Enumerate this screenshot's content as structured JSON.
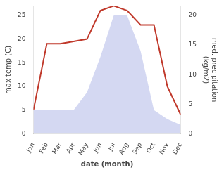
{
  "chart_data": {
    "type": "line",
    "xlabel": "date (month)",
    "ylabel": "max temp (C)",
    "y2label": "med. precipitation\n(kg/m2)",
    "categories": [
      "Jan",
      "Feb",
      "Mar",
      "Apr",
      "May",
      "Jun",
      "Jul",
      "Aug",
      "Sep",
      "Oct",
      "Nov",
      "Dec"
    ],
    "series": [
      {
        "type": "line",
        "color": "#c0392b",
        "values": [
          5,
          19,
          19,
          19.5,
          20,
          26,
          27,
          26,
          23,
          23,
          10,
          4
        ]
      },
      {
        "type": "area",
        "color": "#b0b8e8",
        "axis": "y2",
        "values": [
          4,
          4,
          4,
          4,
          7,
          13,
          20,
          20,
          14,
          4,
          2.5,
          1.5
        ]
      }
    ],
    "ylim": [
      0,
      27
    ],
    "yticks": [
      0,
      5,
      10,
      15,
      20,
      25
    ],
    "y2lim": [
      0,
      21.6
    ],
    "y2ticks": [
      0,
      5,
      10,
      15,
      20
    ],
    "grid": false
  }
}
